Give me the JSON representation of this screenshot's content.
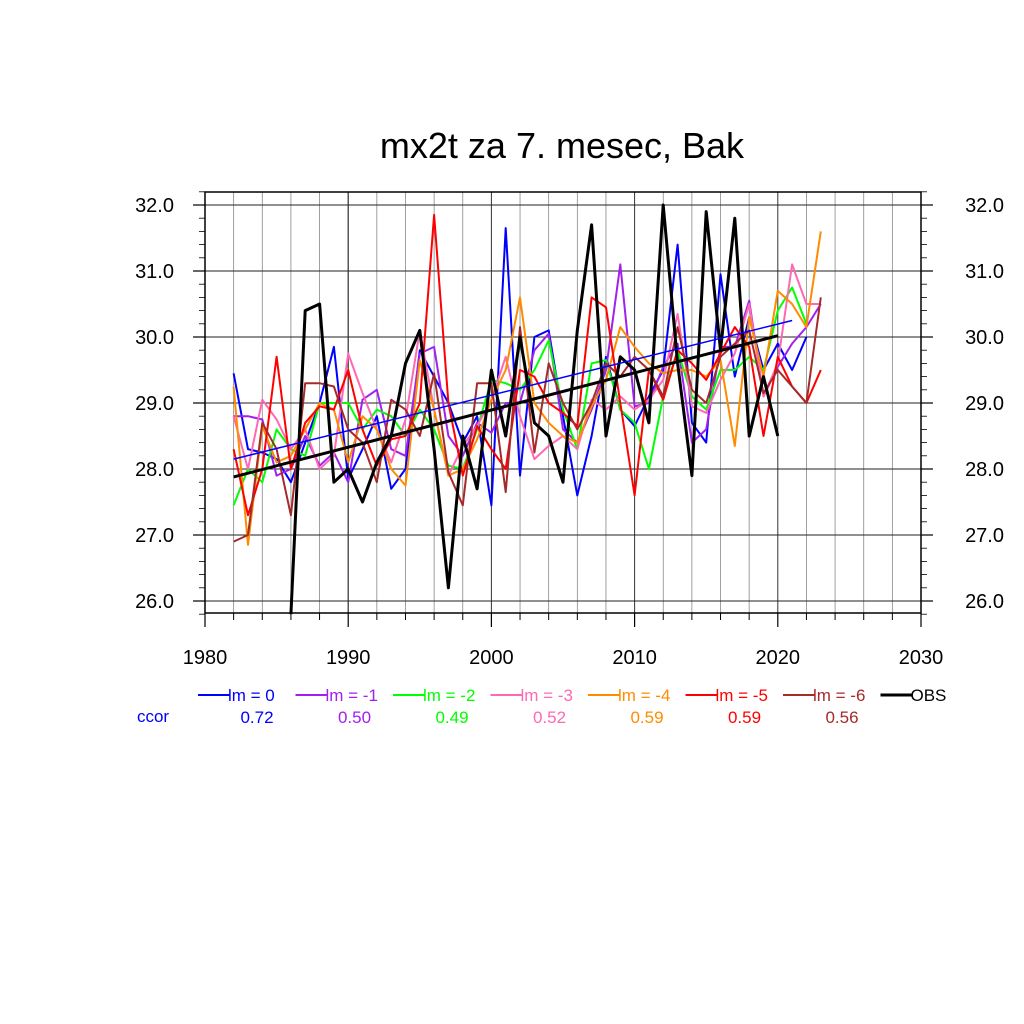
{
  "chart_data": {
    "type": "line",
    "title": "mx2t za 7. mesec, Bak",
    "xlabel": "",
    "ylabel": "",
    "xlim": [
      1980,
      2030
    ],
    "ylim": [
      25.8,
      32.2
    ],
    "x_ticks": [
      "1980",
      "1990",
      "2000",
      "2010",
      "2020",
      "2030"
    ],
    "y_ticks": [
      "26.0",
      "27.0",
      "28.0",
      "29.0",
      "30.0",
      "31.0",
      "32.0"
    ],
    "grid": true,
    "legend_position": "bottom",
    "corr_label": "ccor",
    "series": [
      {
        "name": "lm = 0",
        "color": "#0000ff",
        "corr": "0.72",
        "start": 1982,
        "values": [
          29.45,
          28.3,
          28.25,
          28.15,
          27.8,
          28.4,
          29.0,
          29.85,
          27.85,
          28.3,
          28.8,
          27.7,
          28.0,
          29.8,
          29.4,
          29.0,
          28.4,
          28.8,
          27.45,
          31.65,
          27.9,
          30.0,
          30.1,
          28.8,
          27.6,
          28.5,
          29.7,
          28.9,
          28.65,
          29.1,
          29.5,
          31.4,
          28.7,
          28.4,
          30.95,
          29.4,
          30.3,
          29.5,
          29.9,
          29.5,
          30.0
        ],
        "trend": [
          [
            1982,
            28.15
          ],
          [
            2021,
            30.25
          ]
        ]
      },
      {
        "name": "lm = -1",
        "color": "#a020f0",
        "corr": "0.50",
        "start": 1982,
        "values": [
          28.8,
          28.8,
          28.75,
          27.9,
          28.0,
          28.5,
          28.05,
          28.25,
          27.8,
          29.05,
          29.2,
          28.3,
          28.2,
          29.75,
          29.85,
          28.5,
          28.2,
          28.7,
          28.55,
          29.0,
          29.0,
          29.8,
          30.05,
          28.6,
          28.4,
          28.9,
          29.5,
          31.1,
          28.95,
          29.0,
          29.55,
          29.9,
          28.4,
          28.6,
          29.85,
          29.85,
          30.55,
          29.1,
          29.55,
          29.9,
          30.15,
          30.5
        ]
      },
      {
        "name": "lm = -2",
        "color": "#00ff00",
        "corr": "0.49",
        "start": 1982,
        "values": [
          27.45,
          28.0,
          27.8,
          28.6,
          28.3,
          28.2,
          29.0,
          29.0,
          29.0,
          28.6,
          28.9,
          28.8,
          28.5,
          28.9,
          28.6,
          28.05,
          28.0,
          28.6,
          29.35,
          29.3,
          29.2,
          29.5,
          29.95,
          28.9,
          28.3,
          29.6,
          29.65,
          28.9,
          28.7,
          28.0,
          29.1,
          29.8,
          29.1,
          28.9,
          29.5,
          29.5,
          29.7,
          29.5,
          30.4,
          30.75,
          30.2
        ]
      },
      {
        "name": "lm = -3",
        "color": "#ff69b4",
        "corr": "0.52",
        "start": 1982,
        "values": [
          28.8,
          28.0,
          29.05,
          28.75,
          28.3,
          28.6,
          28.0,
          28.2,
          29.75,
          29.15,
          28.6,
          28.1,
          28.75,
          30.1,
          28.9,
          27.9,
          28.35,
          28.65,
          29.05,
          29.7,
          28.8,
          28.15,
          28.35,
          28.5,
          28.3,
          29.05,
          28.9,
          29.1,
          28.9,
          29.05,
          29.35,
          30.35,
          28.95,
          28.85,
          29.35,
          29.75,
          30.5,
          29.1,
          29.6,
          31.1,
          30.5,
          30.5
        ]
      },
      {
        "name": "lm = -4",
        "color": "#ff8c00",
        "corr": "0.59",
        "start": 1982,
        "values": [
          29.25,
          26.85,
          28.65,
          28.1,
          28.2,
          28.6,
          29.0,
          28.9,
          28.1,
          28.8,
          28.6,
          28.0,
          27.75,
          29.65,
          28.9,
          27.9,
          28.0,
          28.45,
          29.05,
          29.5,
          30.6,
          29.0,
          28.7,
          28.5,
          28.4,
          28.95,
          29.35,
          30.15,
          29.85,
          29.6,
          29.45,
          29.5,
          29.5,
          29.4,
          29.65,
          28.35,
          30.3,
          29.4,
          30.7,
          30.5,
          30.15,
          31.6
        ]
      },
      {
        "name": "lm = -5",
        "color": "#ff0000",
        "corr": "0.59",
        "start": 1982,
        "values": [
          28.3,
          27.3,
          28.0,
          29.7,
          28.0,
          28.7,
          28.95,
          28.9,
          29.5,
          28.6,
          28.05,
          28.45,
          28.5,
          29.0,
          31.85,
          29.0,
          27.9,
          28.65,
          28.3,
          28.0,
          29.5,
          29.4,
          29.0,
          28.85,
          28.65,
          30.6,
          30.45,
          29.0,
          27.6,
          29.5,
          29.05,
          29.8,
          29.6,
          29.35,
          29.75,
          30.15,
          29.85,
          28.5,
          29.7,
          29.25,
          29.0,
          29.5
        ]
      },
      {
        "name": "lm = -6",
        "color": "#a52a2a",
        "corr": "0.56",
        "start": 1982,
        "values": [
          26.9,
          27.0,
          28.7,
          28.3,
          27.3,
          29.3,
          29.3,
          29.25,
          28.6,
          28.4,
          27.8,
          29.05,
          28.9,
          28.5,
          29.45,
          27.95,
          27.45,
          29.3,
          29.3,
          27.65,
          30.15,
          28.25,
          29.6,
          29.0,
          28.6,
          29.0,
          29.6,
          29.4,
          29.7,
          29.5,
          29.1,
          30.15,
          29.2,
          29.0,
          29.7,
          29.9,
          30.1,
          29.15,
          29.5,
          29.25,
          29.0,
          30.6
        ]
      },
      {
        "name": "OBS",
        "color": "#000000",
        "corr": "",
        "start": 1982,
        "values": [
          null,
          null,
          null,
          null,
          25.8,
          30.4,
          30.5,
          27.8,
          28.0,
          27.5,
          28.1,
          28.5,
          29.6,
          30.1,
          28.3,
          26.2,
          28.5,
          27.7,
          29.5,
          28.5,
          30.0,
          28.7,
          28.5,
          27.8,
          30.1,
          31.7,
          28.5,
          29.7,
          29.5,
          28.7,
          32.0,
          29.6,
          27.9,
          31.9,
          29.8,
          31.8,
          28.5,
          29.4,
          28.5
        ],
        "trend": [
          [
            1982,
            27.88
          ],
          [
            2020,
            30.02
          ]
        ]
      }
    ]
  }
}
